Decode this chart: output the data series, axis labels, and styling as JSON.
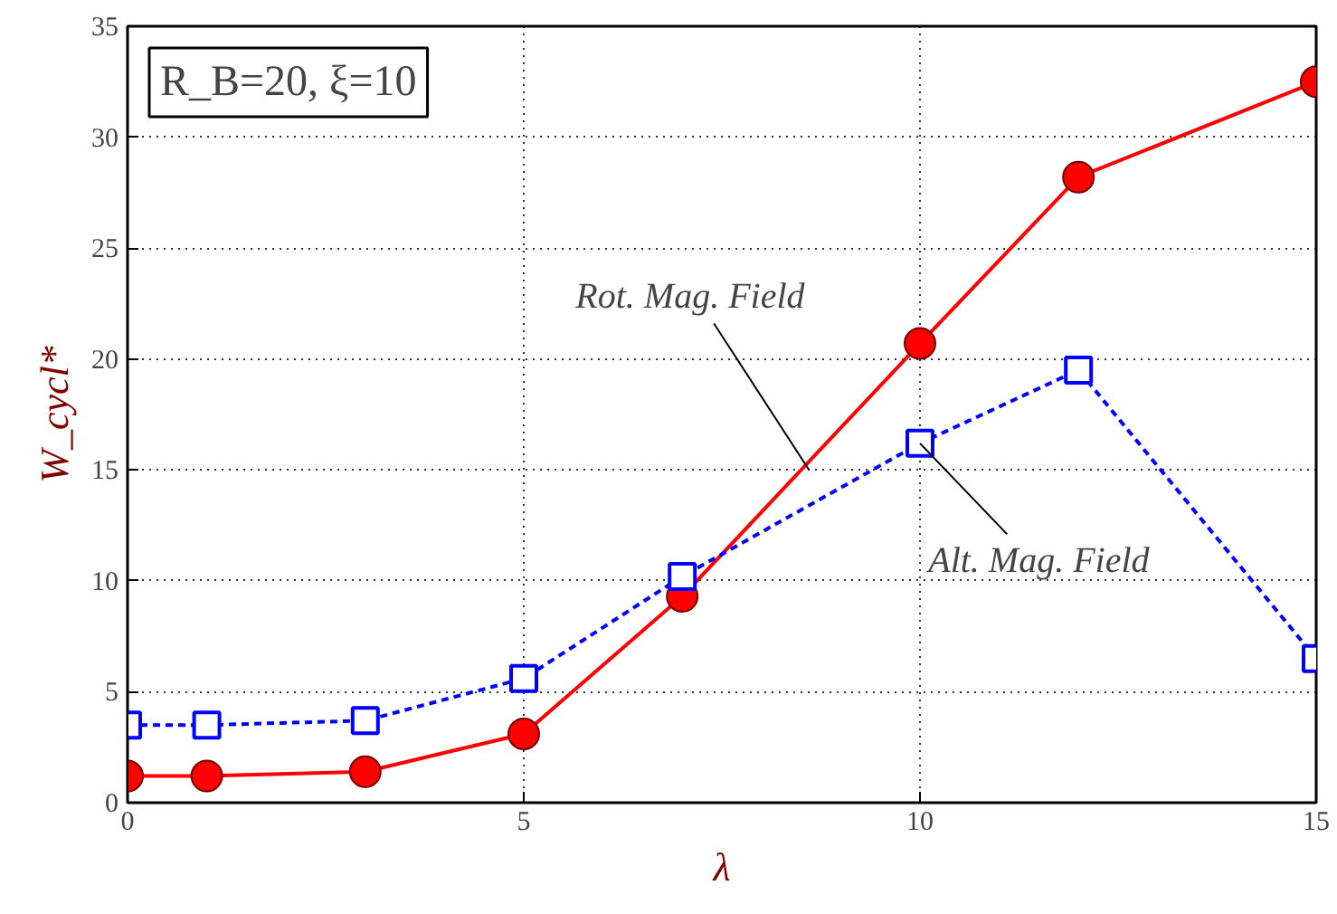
{
  "chart_data": {
    "type": "line",
    "xlabel": "λ",
    "ylabel": "W_cycl*",
    "x": [
      0,
      1,
      3,
      5,
      7,
      10,
      12,
      15
    ],
    "series": [
      {
        "color": "#ff0000",
        "marker": "circle",
        "line_style": "solid",
        "values": [
          1.2,
          1.2,
          1.4,
          3.1,
          9.3,
          20.7,
          28.2,
          32.5
        ]
      },
      {
        "color": "#0000ff",
        "marker": "square",
        "line_style": "dashed",
        "values": [
          3.5,
          3.5,
          3.7,
          5.6,
          10.2,
          16.2,
          19.5,
          6.5
        ]
      }
    ],
    "annotations": [
      "R_B=20, ξ=10",
      {
        "text": "Rot. Mag. Field",
        "x": 8.6,
        "y": 15.0
      },
      {
        "text": "Alt. Mag. Field",
        "x": 10.0,
        "y": 16.2
      }
    ],
    "xlim": [
      0,
      15
    ],
    "ylim": [
      0,
      35
    ],
    "xticks": [
      0,
      5,
      10,
      15
    ],
    "yticks": [
      0,
      5,
      10,
      15,
      20,
      25,
      30,
      35
    ],
    "grid": true
  }
}
